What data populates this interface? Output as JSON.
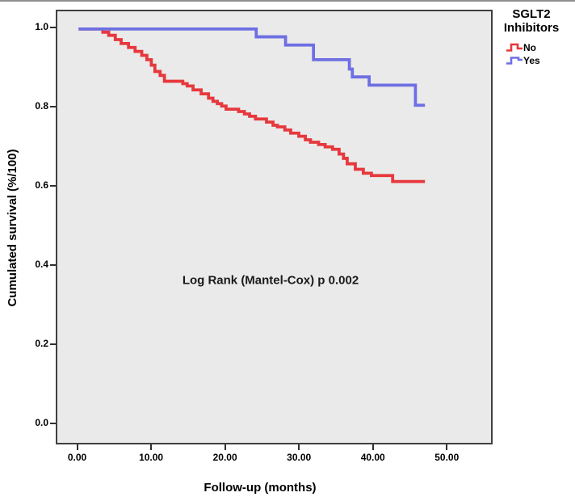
{
  "figure": {
    "type": "kaplan-meier-survival-plot"
  },
  "legend": {
    "title_line1": "SGLT2",
    "title_line2": "Inhibitors",
    "items": [
      {
        "label": "No",
        "color": "#e6383d"
      },
      {
        "label": "Yes",
        "color": "#6e6fe3"
      }
    ]
  },
  "chart_data": {
    "type": "line",
    "subtype": "step-survival",
    "title": "",
    "xlabel": "Follow-up (months)",
    "ylabel": "Cumulated survival (%/100)",
    "legend_title": "SGLT2 Inhibitors",
    "legend_position": "top-right-outside",
    "grid": false,
    "panel_bg": "#eaeaea",
    "xlim": [
      -2.9,
      56.2
    ],
    "ylim": [
      -0.053,
      1.045
    ],
    "x_ticks": {
      "values": [
        0,
        10,
        20,
        30,
        40,
        50
      ],
      "labels": [
        "0.00",
        "10.00",
        "20.00",
        "30.00",
        "40.00",
        "50.00"
      ]
    },
    "y_ticks": {
      "values": [
        0.0,
        0.2,
        0.4,
        0.6,
        0.8,
        1.0
      ],
      "labels": [
        "0.0",
        "0.2",
        "0.4",
        "0.6",
        "0.8",
        "1.0"
      ]
    },
    "annotation": {
      "text": "Log Rank (Mantel-Cox) p 0.002",
      "x": 26.2,
      "y": 0.36
    },
    "series": [
      {
        "name": "No",
        "color": "#e6383d",
        "end_time": 47.2,
        "points": [
          [
            0,
            1.0
          ],
          [
            3.3,
            0.992
          ],
          [
            4.1,
            0.984
          ],
          [
            5.0,
            0.973
          ],
          [
            5.8,
            0.963
          ],
          [
            6.8,
            0.953
          ],
          [
            7.7,
            0.943
          ],
          [
            8.6,
            0.933
          ],
          [
            9.3,
            0.922
          ],
          [
            9.9,
            0.908
          ],
          [
            10.4,
            0.892
          ],
          [
            11.1,
            0.882
          ],
          [
            11.7,
            0.867
          ],
          [
            14.2,
            0.861
          ],
          [
            14.8,
            0.855
          ],
          [
            15.6,
            0.845
          ],
          [
            16.7,
            0.835
          ],
          [
            17.7,
            0.824
          ],
          [
            18.3,
            0.816
          ],
          [
            18.9,
            0.81
          ],
          [
            19.5,
            0.804
          ],
          [
            20.1,
            0.796
          ],
          [
            21.8,
            0.79
          ],
          [
            22.6,
            0.784
          ],
          [
            23.3,
            0.778
          ],
          [
            24.1,
            0.771
          ],
          [
            25.6,
            0.763
          ],
          [
            26.5,
            0.755
          ],
          [
            27.1,
            0.751
          ],
          [
            28.1,
            0.743
          ],
          [
            28.9,
            0.735
          ],
          [
            30.0,
            0.727
          ],
          [
            30.9,
            0.718
          ],
          [
            31.6,
            0.712
          ],
          [
            32.7,
            0.706
          ],
          [
            33.6,
            0.7
          ],
          [
            34.6,
            0.694
          ],
          [
            35.5,
            0.682
          ],
          [
            36.1,
            0.671
          ],
          [
            36.6,
            0.657
          ],
          [
            37.7,
            0.643
          ],
          [
            38.8,
            0.633
          ],
          [
            39.9,
            0.627
          ],
          [
            42.8,
            0.612
          ]
        ]
      },
      {
        "name": "Yes",
        "color": "#6e6fe3",
        "end_time": 47.2,
        "points": [
          [
            0,
            1.0
          ],
          [
            24.2,
            0.98
          ],
          [
            28.2,
            0.959
          ],
          [
            32.0,
            0.922
          ],
          [
            36.9,
            0.898
          ],
          [
            37.3,
            0.878
          ],
          [
            39.6,
            0.857
          ],
          [
            45.9,
            0.806
          ]
        ]
      }
    ]
  }
}
